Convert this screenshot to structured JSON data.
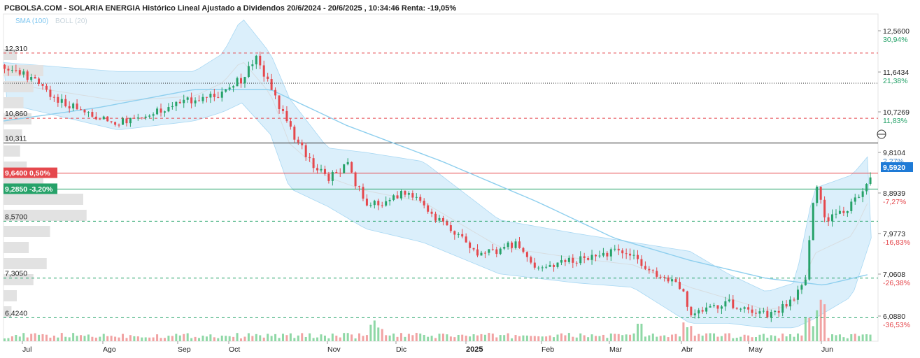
{
  "title": "PCBOLSA.COM - SOLARIA ENERGIA Histórico Lineal Ajustado a Dividendos 20/6/2024 - 20/6/2025 , 10:34:46 Renta: -19,05%",
  "legend": {
    "sma": "SMA (100)",
    "boll": "BOLL (20)"
  },
  "colors": {
    "up": "#26a269",
    "down": "#e5484d",
    "sma": "#8ecfee",
    "boll_fill": "#cfe9f9",
    "price_badge": "#1e7ad6"
  },
  "chart_data": {
    "type": "candlestick",
    "y_axis_ticks": [
      {
        "value": "12,5600",
        "pct": "30,94%",
        "sign": "pos"
      },
      {
        "value": "11,6434",
        "pct": "21,38%",
        "sign": "pos"
      },
      {
        "value": "10,7269",
        "pct": "11,83%",
        "sign": "pos"
      },
      {
        "value": "9,8104",
        "pct": "2,27%",
        "sign": "blue"
      },
      {
        "value": "8,8939",
        "pct": "-7,27%",
        "sign": "neg"
      },
      {
        "value": "7,9773",
        "pct": "-16,83%",
        "sign": "neg"
      },
      {
        "value": "7,0608",
        "pct": "-26,38%",
        "sign": "neg"
      },
      {
        "value": "6,0880",
        "pct": "-36,53%",
        "sign": "neg"
      }
    ],
    "x_labels": [
      "Jul",
      "Ago",
      "Sep",
      "Oct",
      "Nov",
      "Dic",
      "2025",
      "Feb",
      "Mar",
      "Abr",
      "May",
      "Jun"
    ],
    "last_price": "9,5920",
    "levels": [
      {
        "label": "12,310",
        "value": 12.31,
        "style": "red-dash"
      },
      {
        "value": 11.64,
        "style": "black-dot"
      },
      {
        "label": "10,860",
        "value": 10.86,
        "style": "red-dash"
      },
      {
        "label": "10,311",
        "value": 10.311,
        "style": "black-solid"
      },
      {
        "label": "8,5700",
        "value": 8.57,
        "style": "green-dash"
      },
      {
        "label": "7,3050",
        "value": 7.305,
        "style": "green-dash"
      },
      {
        "label": "6,4240",
        "value": 6.424,
        "style": "green-dash"
      }
    ],
    "badges": [
      {
        "label": "9,6400  0,50%",
        "value": 9.64,
        "color": "red"
      },
      {
        "label": "9,2850  -3,20%",
        "value": 9.285,
        "color": "green"
      }
    ],
    "close_path": [
      [
        0,
        12.05
      ],
      [
        15,
        11.7
      ],
      [
        30,
        11.2
      ],
      [
        45,
        10.95
      ],
      [
        58,
        10.75
      ],
      [
        70,
        10.9
      ],
      [
        85,
        11.1
      ],
      [
        100,
        11.3
      ],
      [
        112,
        11.4
      ],
      [
        125,
        11.75
      ],
      [
        132,
        12.2
      ],
      [
        140,
        11.5
      ],
      [
        150,
        10.6
      ],
      [
        160,
        9.9
      ],
      [
        170,
        9.55
      ],
      [
        180,
        9.8
      ],
      [
        190,
        8.9
      ],
      [
        200,
        9.0
      ],
      [
        210,
        9.2
      ],
      [
        220,
        8.9
      ],
      [
        230,
        8.5
      ],
      [
        240,
        8.2
      ],
      [
        248,
        7.8
      ],
      [
        258,
        7.9
      ],
      [
        268,
        8.1
      ],
      [
        278,
        7.55
      ],
      [
        288,
        7.6
      ],
      [
        300,
        7.7
      ],
      [
        310,
        7.8
      ],
      [
        320,
        7.9
      ],
      [
        330,
        7.75
      ],
      [
        340,
        7.4
      ],
      [
        350,
        7.25
      ],
      [
        355,
        7.05
      ],
      [
        360,
        6.5
      ],
      [
        370,
        6.6
      ],
      [
        380,
        6.75
      ],
      [
        390,
        6.6
      ],
      [
        400,
        6.5
      ],
      [
        410,
        6.7
      ],
      [
        415,
        6.9
      ],
      [
        420,
        7.3
      ],
      [
        425,
        9.5
      ],
      [
        430,
        8.6
      ],
      [
        440,
        8.8
      ],
      [
        450,
        9.2
      ],
      [
        455,
        9.59
      ]
    ],
    "sma_path": [
      [
        0,
        10.8
      ],
      [
        50,
        11.1
      ],
      [
        100,
        11.5
      ],
      [
        140,
        11.5
      ],
      [
        180,
        10.7
      ],
      [
        230,
        9.9
      ],
      [
        280,
        9.0
      ],
      [
        320,
        8.2
      ],
      [
        360,
        7.7
      ],
      [
        400,
        7.3
      ],
      [
        430,
        7.15
      ],
      [
        455,
        7.4
      ]
    ],
    "boll_upper": [
      [
        0,
        12.1
      ],
      [
        60,
        11.9
      ],
      [
        100,
        11.9
      ],
      [
        115,
        12.3
      ],
      [
        125,
        13.1
      ],
      [
        140,
        12.3
      ],
      [
        150,
        11.3
      ],
      [
        170,
        10.2
      ],
      [
        190,
        10.1
      ],
      [
        220,
        9.9
      ],
      [
        260,
        8.6
      ],
      [
        300,
        8.3
      ],
      [
        330,
        8.1
      ],
      [
        360,
        7.9
      ],
      [
        380,
        7.4
      ],
      [
        400,
        7.0
      ],
      [
        415,
        7.2
      ],
      [
        425,
        9.3
      ],
      [
        445,
        9.6
      ],
      [
        455,
        10.1
      ]
    ],
    "boll_lower": [
      [
        0,
        11.2
      ],
      [
        60,
        10.6
      ],
      [
        100,
        10.8
      ],
      [
        115,
        11.0
      ],
      [
        125,
        11.2
      ],
      [
        140,
        10.5
      ],
      [
        150,
        9.3
      ],
      [
        170,
        8.9
      ],
      [
        190,
        8.4
      ],
      [
        220,
        8.1
      ],
      [
        260,
        7.4
      ],
      [
        300,
        7.2
      ],
      [
        330,
        7.1
      ],
      [
        360,
        6.3
      ],
      [
        380,
        6.3
      ],
      [
        400,
        6.2
      ],
      [
        415,
        6.2
      ],
      [
        425,
        6.4
      ],
      [
        445,
        6.9
      ],
      [
        455,
        8.2
      ]
    ]
  }
}
